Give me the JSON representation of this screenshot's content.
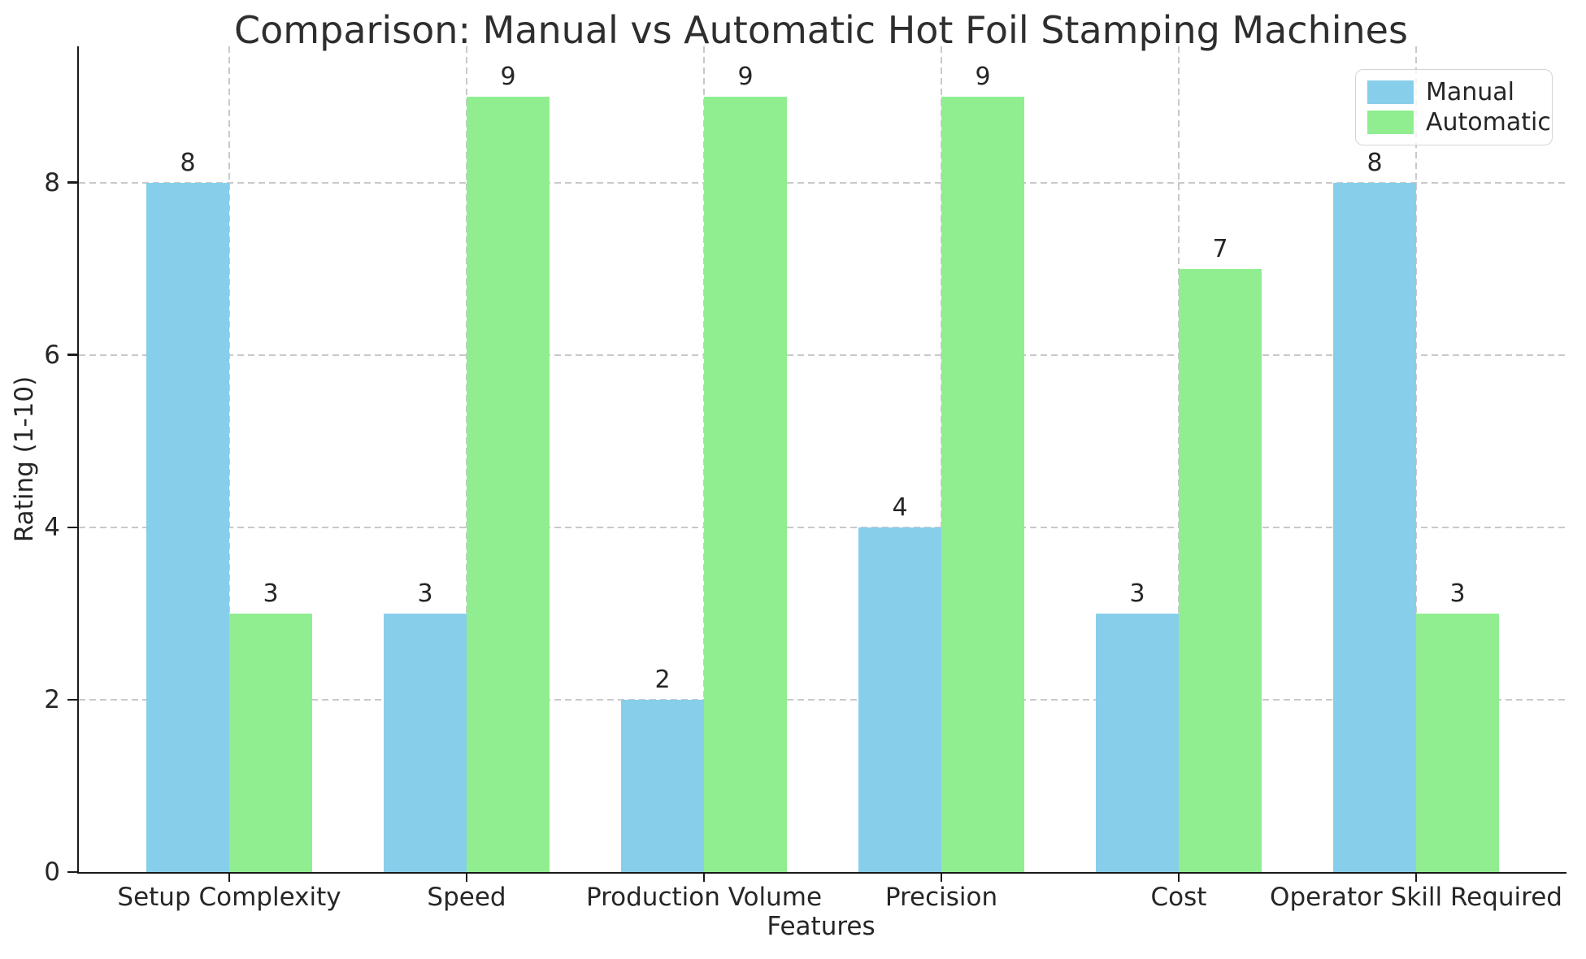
{
  "chart_data": {
    "type": "bar",
    "title": "Comparison: Manual vs Automatic Hot Foil Stamping Machines",
    "xlabel": "Features",
    "ylabel": "Rating (1-10)",
    "categories": [
      "Setup Complexity",
      "Speed",
      "Production Volume",
      "Precision",
      "Cost",
      "Operator Skill Required"
    ],
    "series": [
      {
        "name": "Manual",
        "color": "#87CEEB",
        "values": [
          8,
          3,
          2,
          4,
          3,
          8
        ]
      },
      {
        "name": "Automatic",
        "color": "#90EE90",
        "values": [
          3,
          9,
          9,
          9,
          7,
          3
        ]
      }
    ],
    "yticks": [
      0,
      2,
      4,
      6,
      8
    ],
    "ylim": [
      0,
      9.58
    ],
    "grid": {
      "style": "dashed",
      "axes": "both"
    },
    "legend": {
      "position": "upper-right"
    },
    "value_labels": true
  },
  "style": {
    "text_color": "#262626",
    "grid_color": "#c9c9c9",
    "spine_color": "#1a1a1a",
    "background": "#ffffff",
    "legend_border": "#d4d4d4"
  }
}
